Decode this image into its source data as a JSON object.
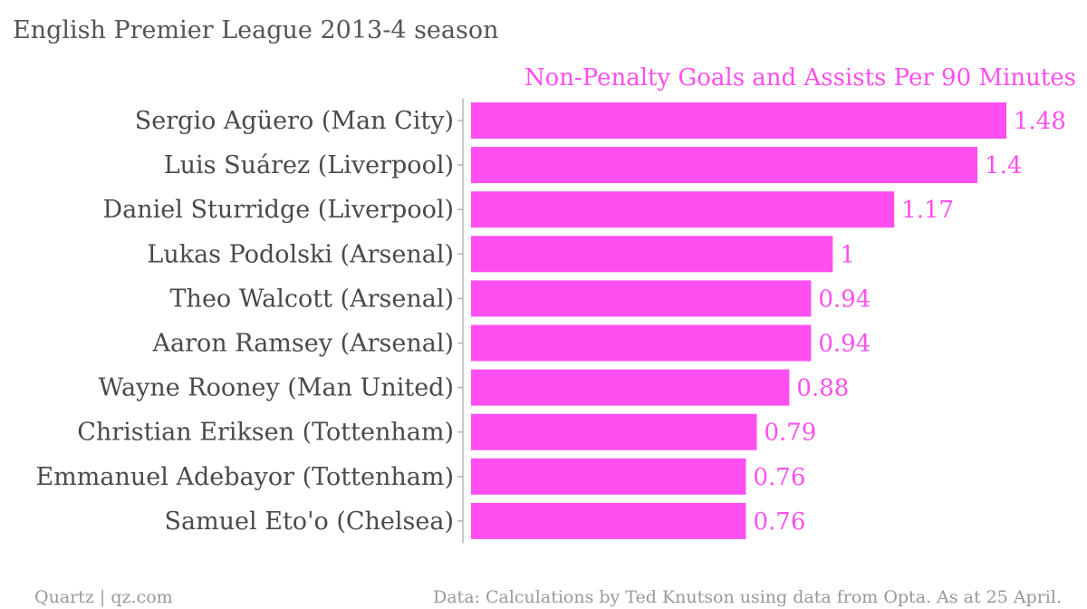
{
  "chart_data": {
    "type": "bar",
    "orientation": "horizontal",
    "title": "English Premier League 2013-4 season",
    "series": [
      {
        "name": "Non-Penalty Goals and Assists Per 90 Minutes",
        "color": "#ff4ff0",
        "values": [
          1.48,
          1.4,
          1.17,
          1,
          0.94,
          0.94,
          0.88,
          0.79,
          0.76,
          0.76
        ],
        "value_labels": [
          "1.48",
          "1.4",
          "1.17",
          "1",
          "0.94",
          "0.94",
          "0.88",
          "0.79",
          "0.76",
          "0.76"
        ]
      }
    ],
    "categories": [
      "Sergio Agüero (Man City)",
      "Luis Suárez (Liverpool)",
      "Daniel Sturridge (Liverpool)",
      "Lukas Podolski (Arsenal)",
      "Theo Walcott (Arsenal)",
      "Aaron Ramsey (Arsenal)",
      "Wayne Rooney (Man United)",
      "Christian Eriksen (Tottenham)",
      "Emmanuel Adebayor (Tottenham)",
      "Samuel Eto'o (Chelsea)"
    ],
    "xlim": [
      0,
      1.48
    ],
    "grid": false,
    "legend": "top-right"
  },
  "footer": {
    "source_left": "Quartz | qz.com",
    "source_right": "Data: Calculations by Ted Knutson using data from Opta. As at 25 April."
  },
  "colors": {
    "bar": "#ff4ff0",
    "title": "#555555",
    "category_text": "#4a4a4a",
    "footer_text": "#999999",
    "axis": "#b5b5b5"
  }
}
